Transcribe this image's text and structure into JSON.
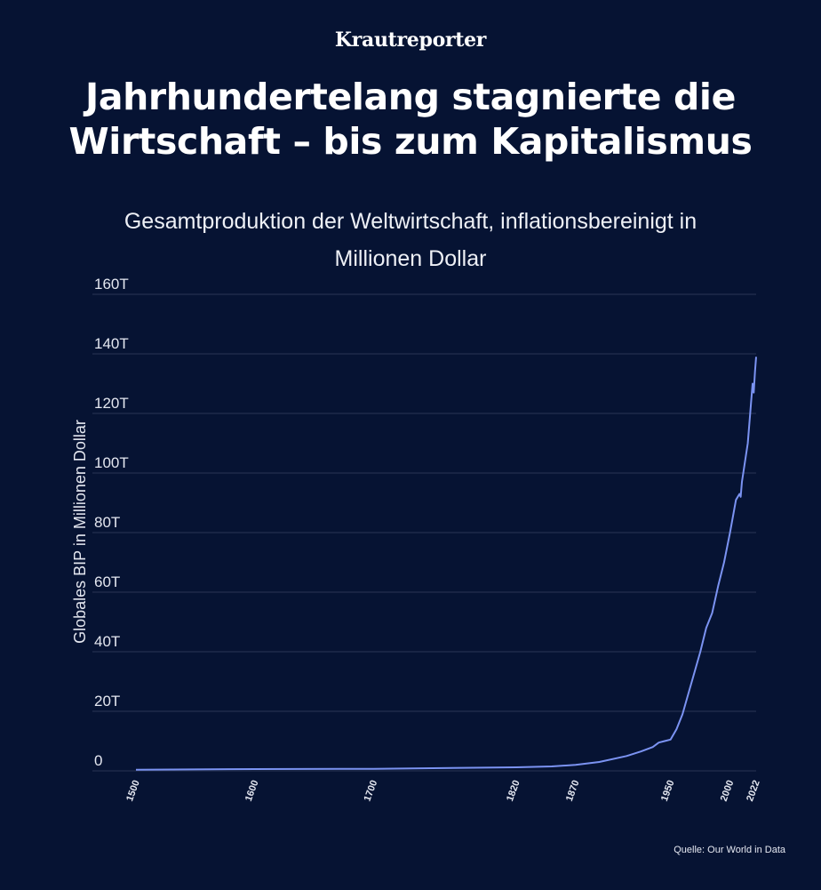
{
  "header": {
    "brand": "Krautreporter",
    "title_line1": "Jahrhundertelang stagnierte die",
    "title_line2": "Wirtschaft – bis zum Kapitalismus",
    "subtitle_line1": "Gesamtproduktion der Weltwirtschaft, inflationsbereinigt in",
    "subtitle_line2": "Millionen Dollar"
  },
  "footer": {
    "source": "Quelle: Our World in Data"
  },
  "colors": {
    "background": "#061333",
    "line": "#7b93f2",
    "grid": "#2a3656"
  },
  "chart_data": {
    "type": "line",
    "title": "Gesamtproduktion der Weltwirtschaft, inflationsbereinigt in Millionen Dollar",
    "xlabel": "",
    "ylabel": "Globales BIP in Millionen Dollar",
    "ylim": [
      0,
      160
    ],
    "xlim": [
      1500,
      2022
    ],
    "grid": true,
    "y_ticks": [
      0,
      20,
      40,
      60,
      80,
      100,
      120,
      140,
      160
    ],
    "y_tick_labels": [
      "0",
      "20T",
      "40T",
      "60T",
      "80T",
      "100T",
      "120T",
      "140T",
      "160T"
    ],
    "x_ticks": [
      1500,
      1600,
      1700,
      1820,
      1870,
      1950,
      2000,
      2022
    ],
    "x_tick_labels": [
      "1500",
      "1600",
      "1700",
      "1820",
      "1870",
      "1950",
      "2000",
      "2022"
    ],
    "series": [
      {
        "x": [
          1500,
          1600,
          1700,
          1820,
          1850,
          1870,
          1890,
          1913,
          1925,
          1935,
          1940,
          1945,
          1950,
          1955,
          1960,
          1965,
          1970,
          1975,
          1980,
          1985,
          1990,
          1995,
          2000,
          2005,
          2008,
          2009,
          2010,
          2015,
          2019,
          2020,
          2021,
          2022
        ],
        "values": [
          0.4,
          0.6,
          0.7,
          1.2,
          1.5,
          2.0,
          3.0,
          5.0,
          6.5,
          8.0,
          9.5,
          10.0,
          10.5,
          14.0,
          19.0,
          26.0,
          33.0,
          40.0,
          48.0,
          53.0,
          62.0,
          70.0,
          80.0,
          91.0,
          93.0,
          92.0,
          97.0,
          110.0,
          130.0,
          127.0,
          134.0,
          139.0
        ]
      }
    ]
  }
}
